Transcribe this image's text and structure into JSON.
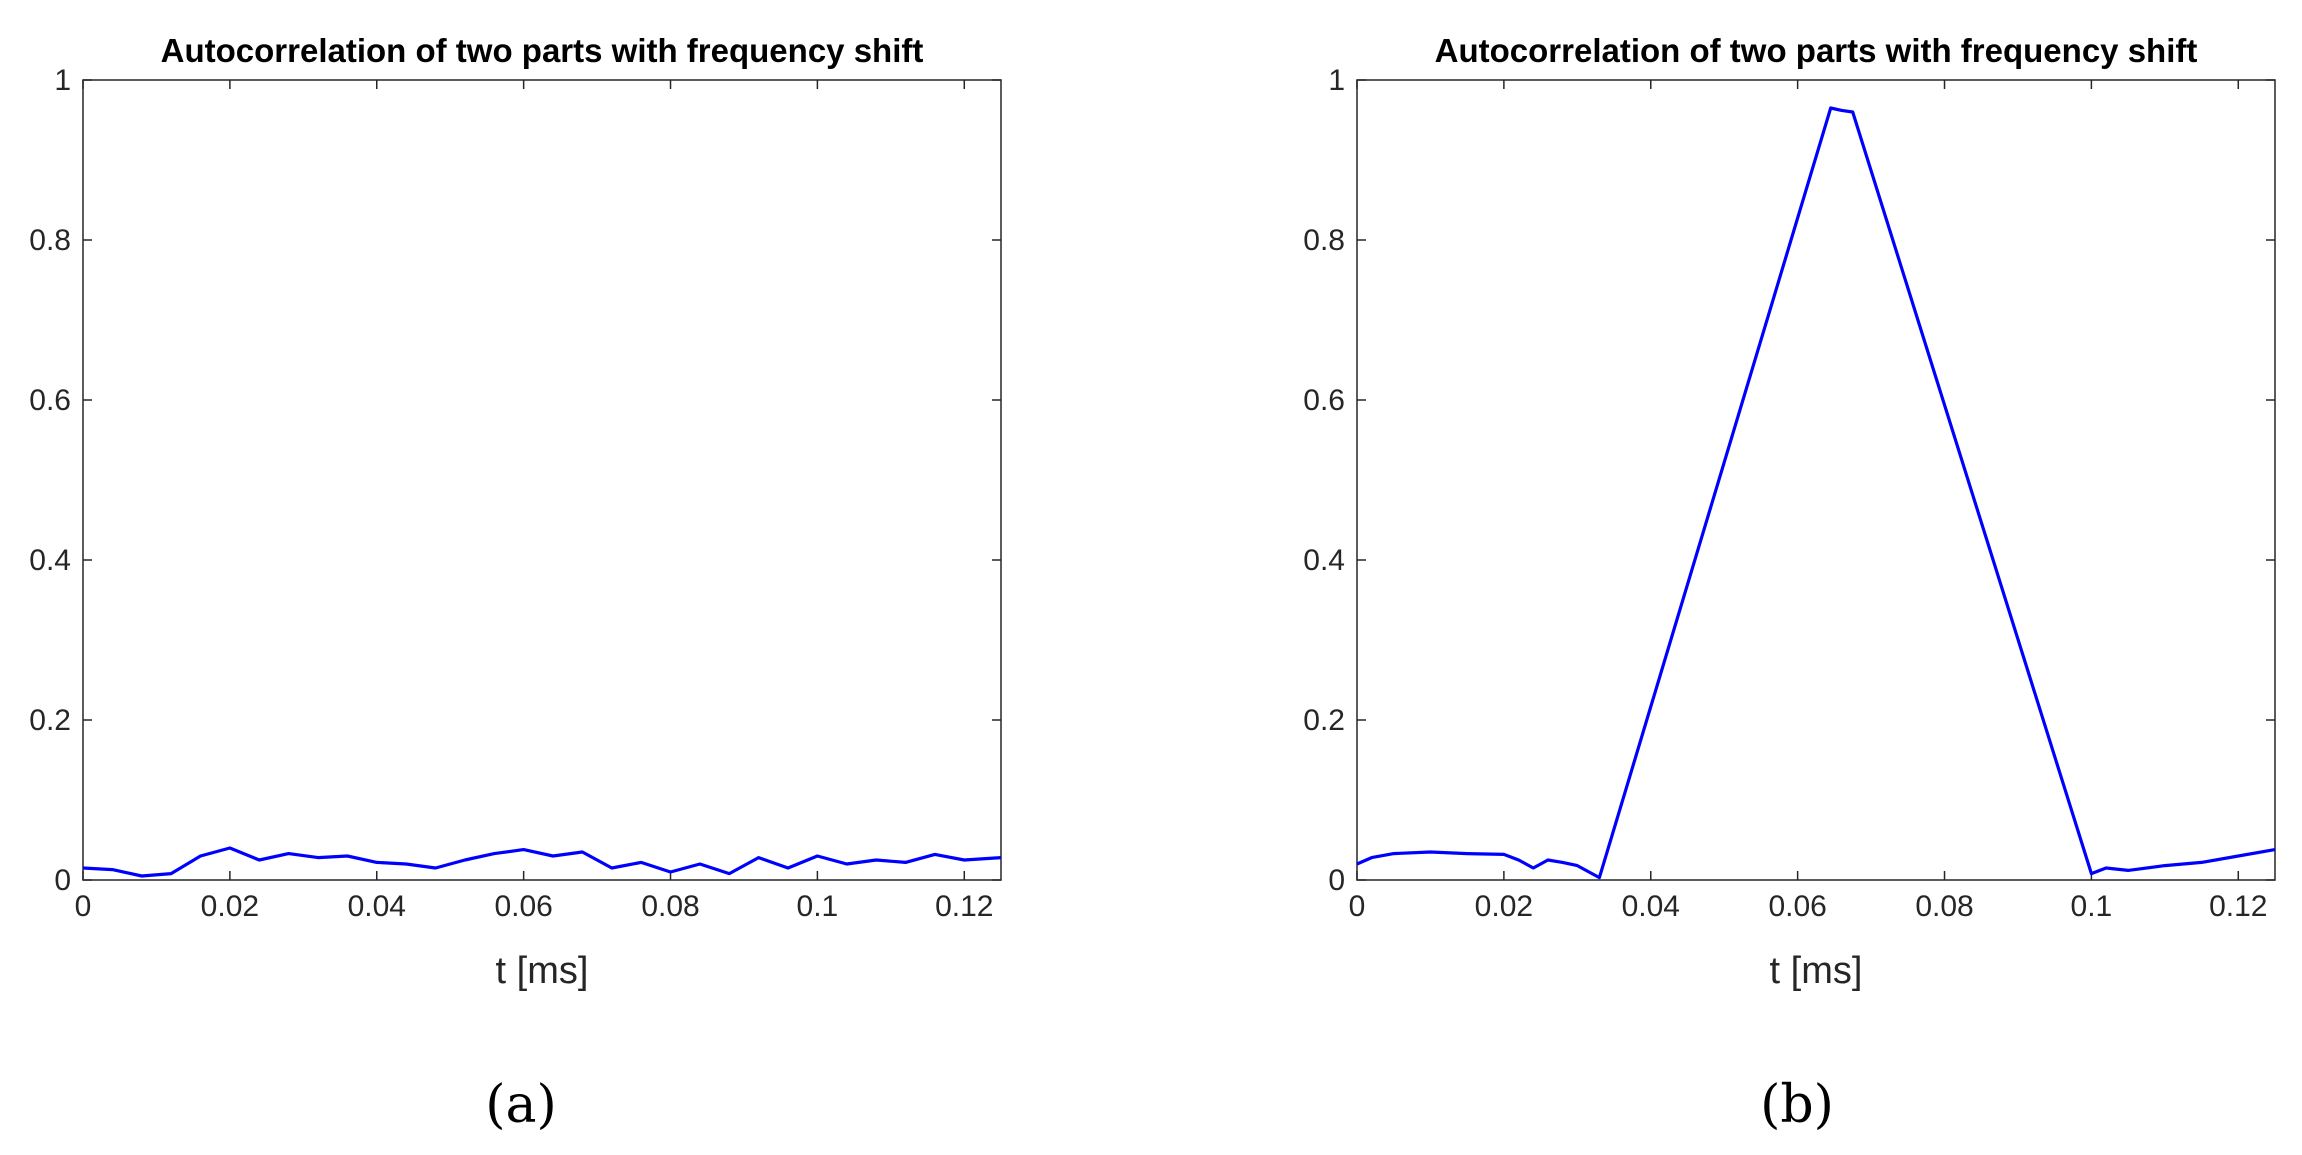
{
  "chart_data": [
    {
      "type": "line",
      "title": "Autocorrelation of two parts with frequency shift",
      "xlabel": "t [ms]",
      "ylabel": "",
      "xlim": [
        0,
        0.125
      ],
      "ylim": [
        0,
        1
      ],
      "xticks": [
        0,
        0.02,
        0.04,
        0.06,
        0.08,
        0.1,
        0.12
      ],
      "xtick_labels": [
        "0",
        "0.02",
        "0.04",
        "0.06",
        "0.08",
        "0.1",
        "0.12"
      ],
      "yticks": [
        0,
        0.2,
        0.4,
        0.6,
        0.8,
        1
      ],
      "ytick_labels": [
        "0",
        "0.2",
        "0.4",
        "0.6",
        "0.8",
        "1"
      ],
      "panel_label": "(a)",
      "series": [
        {
          "color": "#0000ff",
          "x": [
            0,
            0.004,
            0.008,
            0.012,
            0.016,
            0.02,
            0.024,
            0.028,
            0.032,
            0.036,
            0.04,
            0.044,
            0.048,
            0.052,
            0.056,
            0.06,
            0.064,
            0.068,
            0.072,
            0.076,
            0.08,
            0.084,
            0.088,
            0.092,
            0.096,
            0.1,
            0.104,
            0.108,
            0.112,
            0.116,
            0.12,
            0.125
          ],
          "y": [
            0.015,
            0.013,
            0.005,
            0.008,
            0.03,
            0.04,
            0.025,
            0.033,
            0.028,
            0.03,
            0.022,
            0.02,
            0.015,
            0.025,
            0.033,
            0.038,
            0.03,
            0.035,
            0.015,
            0.022,
            0.01,
            0.02,
            0.008,
            0.028,
            0.015,
            0.03,
            0.02,
            0.025,
            0.022,
            0.032,
            0.025,
            0.028
          ]
        }
      ]
    },
    {
      "type": "line",
      "title": "Autocorrelation of two parts with frequency shift",
      "xlabel": "t [ms]",
      "ylabel": "",
      "xlim": [
        0,
        0.125
      ],
      "ylim": [
        0,
        1
      ],
      "xticks": [
        0,
        0.02,
        0.04,
        0.06,
        0.08,
        0.1,
        0.12
      ],
      "xtick_labels": [
        "0",
        "0.02",
        "0.04",
        "0.06",
        "0.08",
        "0.1",
        "0.12"
      ],
      "yticks": [
        0,
        0.2,
        0.4,
        0.6,
        0.8,
        1
      ],
      "ytick_labels": [
        "0",
        "0.2",
        "0.4",
        "0.6",
        "0.8",
        "1"
      ],
      "panel_label": "(b)",
      "series": [
        {
          "color": "#0000ff",
          "x": [
            0,
            0.002,
            0.005,
            0.01,
            0.015,
            0.02,
            0.022,
            0.024,
            0.026,
            0.028,
            0.03,
            0.032,
            0.033,
            0.0645,
            0.066,
            0.0675,
            0.1,
            0.102,
            0.105,
            0.11,
            0.115,
            0.12,
            0.125
          ],
          "y": [
            0.02,
            0.028,
            0.033,
            0.035,
            0.033,
            0.032,
            0.025,
            0.015,
            0.025,
            0.022,
            0.018,
            0.008,
            0.003,
            0.965,
            0.962,
            0.96,
            0.008,
            0.015,
            0.012,
            0.018,
            0.022,
            0.03,
            0.038
          ]
        }
      ]
    }
  ]
}
